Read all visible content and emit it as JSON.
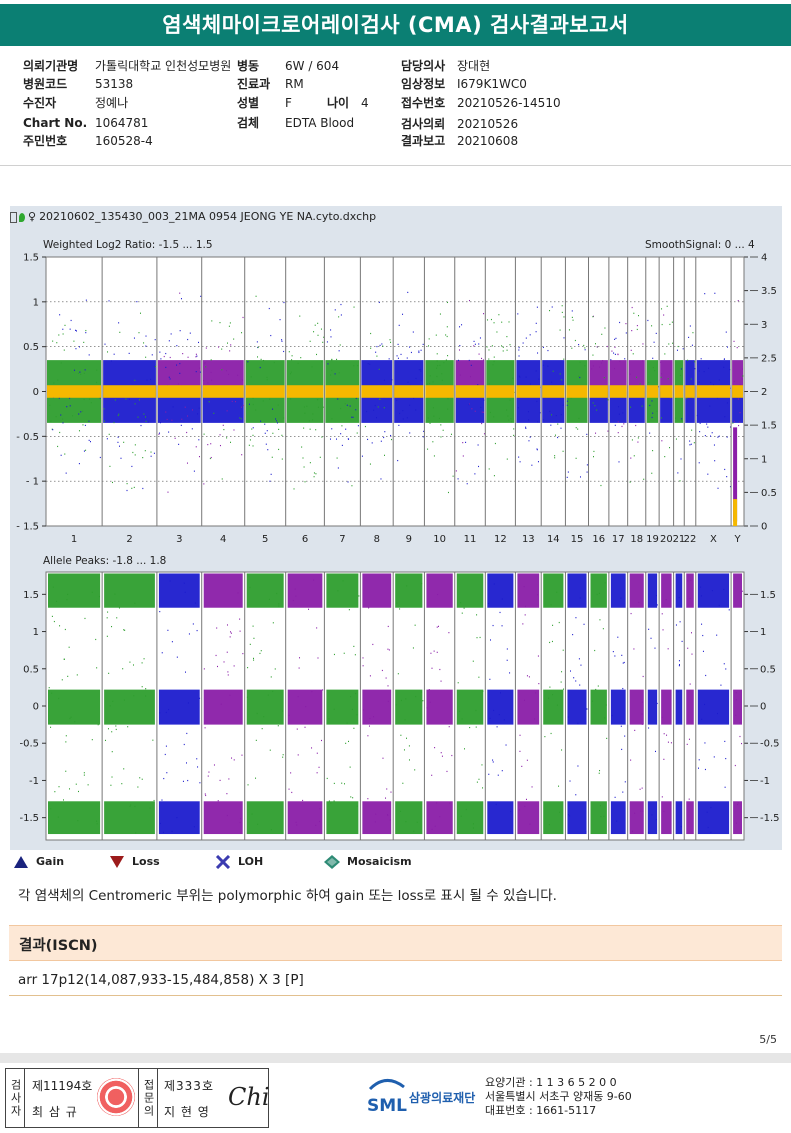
{
  "report": {
    "title": "염색체마이크로어레이검사 (CMA) 검사결과보고서"
  },
  "patient_info": {
    "col1": [
      {
        "label": "의뢰기관명",
        "value": "가톨릭대학교 인천성모병원"
      },
      {
        "label": "병원코드",
        "value": "53138"
      },
      {
        "label": "수진자",
        "value": "정예나"
      },
      {
        "label": "Chart No.",
        "value": "1064781"
      },
      {
        "label": "주민번호",
        "value": "160528-4"
      }
    ],
    "col2": [
      {
        "label": "병동",
        "value": "6W / 604"
      },
      {
        "label": "진료과",
        "value": "RM"
      },
      {
        "label": "성별",
        "value": "F"
      },
      {
        "label": "검체",
        "value": "EDTA Blood"
      }
    ],
    "age": {
      "label": "나이",
      "value": "4"
    },
    "col3": [
      {
        "label": "담당의사",
        "value": "장대현"
      },
      {
        "label": "임상정보",
        "value": "I679K1WC0"
      },
      {
        "label": "접수번호",
        "value": "20210526-14510"
      },
      {
        "label": "검사의뢰",
        "value": "20210526"
      },
      {
        "label": "결과보고",
        "value": "20210608"
      }
    ]
  },
  "plot": {
    "file_name": "20210602_135430_003_21MA 0954 JEONG YE NA.cyto.dxchp",
    "top_left_label": "Weighted Log2 Ratio: -1.5 ... 1.5",
    "top_right_label": "SmoothSignal: 0 ... 4",
    "bottom_left_label": "Allele Peaks: -1.8 ... 1.8",
    "top_left_ticks": [
      "1.5",
      "1",
      "0.5",
      "0",
      "-0.5",
      "-1",
      "-1.5"
    ],
    "top_right_ticks": [
      "4",
      "3.5",
      "3",
      "2.5",
      "2",
      "1.5",
      "1",
      "0.5",
      "0"
    ],
    "bottom_ticks_left": [
      "1.5",
      "1",
      "0.5",
      "0",
      "-0.5",
      "-1",
      "-1.5"
    ],
    "bottom_ticks_right": [
      "1.5",
      "1",
      "0.5",
      "0",
      "-0.5",
      "-1",
      "-1.5"
    ],
    "chromosomes": [
      "1",
      "2",
      "3",
      "4",
      "5",
      "6",
      "7",
      "8",
      "9",
      "10",
      "11",
      "12",
      "13",
      "14",
      "15",
      "16",
      "17",
      "18",
      "19",
      "20",
      "21",
      "22",
      "X",
      "Y"
    ],
    "chrom_sizes": [
      248,
      242,
      198,
      190,
      181,
      171,
      159,
      145,
      138,
      134,
      135,
      133,
      114,
      107,
      102,
      90,
      83,
      80,
      59,
      64,
      47,
      51,
      156,
      57
    ],
    "top_colors": [
      "green",
      "blue",
      "purple",
      "purple",
      "green",
      "green",
      "green",
      "blue",
      "blue",
      "green",
      "purple",
      "green",
      "blue",
      "blue",
      "green",
      "purple",
      "purple",
      "purple",
      "green",
      "purple",
      "green",
      "blue",
      "blue",
      "purple"
    ],
    "bottom_colors": [
      "green",
      "green",
      "blue",
      "purple",
      "green",
      "purple",
      "green",
      "purple",
      "green",
      "purple",
      "green",
      "blue",
      "purple",
      "green",
      "blue",
      "green",
      "blue",
      "purple",
      "blue",
      "purple",
      "blue",
      "purple",
      "blue",
      "purple"
    ],
    "palette": {
      "green": "#2e9e2e",
      "blue": "#1c1ccd",
      "purple": "#8a1ea8",
      "orange": "#f5b800",
      "grid": "#9a9a9a"
    }
  },
  "legend": {
    "items": [
      {
        "label": "Gain",
        "icon": "triangle-up-icon",
        "color": "#1a237e"
      },
      {
        "label": "Loss",
        "icon": "triangle-down-icon",
        "color": "#9c1b1b"
      },
      {
        "label": "LOH",
        "icon": "x-mark-icon",
        "color": "#3b3bb0"
      },
      {
        "label": "Mosaicism",
        "icon": "diamond-icon",
        "color": "#2e8b75"
      }
    ]
  },
  "note": "각 염색체의 Centromeric 부위는 polymorphic 하여 gain 또는 loss로 표시 될 수 있습니다.",
  "result": {
    "heading": "결과(ISCN)",
    "text": "arr 17p12(14,087,933-15,484,858) X 3 [P]"
  },
  "page": "5/5",
  "footer": {
    "examiner_label": "검사자",
    "examiner_no": "제11194호",
    "examiner_name": "최 삼 규",
    "approver_label": "접문의",
    "approver_no": "제333호",
    "approver_name": "지 현 영",
    "signature": "Chi",
    "logo_text": "SML",
    "org_name": "삼광의료재단",
    "code_line": "요양기관 : 1 1 3 6 5 2 0 0",
    "address": "서울특별시 서초구 양재동 9-60",
    "phone": "대표번호 : 1661-5117"
  }
}
